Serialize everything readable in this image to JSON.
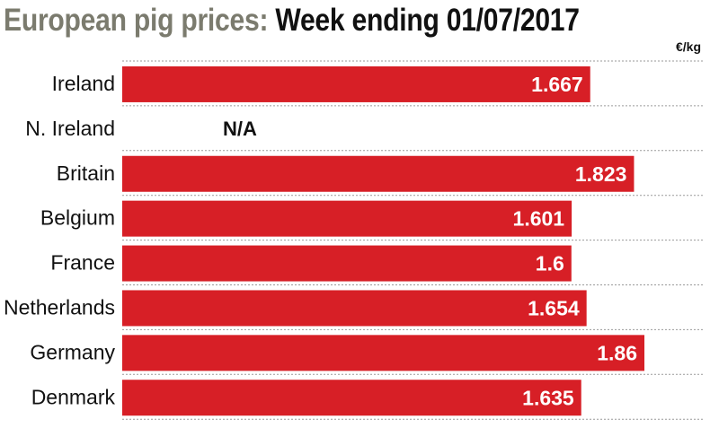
{
  "title": {
    "lead": "European pig prices:",
    "main": "Week ending 01/07/2017"
  },
  "unit": "€/kg",
  "colors": {
    "bar": "#d71f26",
    "bar_label": "#ffffff",
    "text": "#111111",
    "title_lead": "#7b7b6e",
    "grid": "#9a9a9a"
  },
  "chart_data": {
    "type": "bar",
    "orientation": "horizontal",
    "title": "European pig prices: Week ending 01/07/2017",
    "xlabel": "",
    "ylabel": "",
    "unit": "€/kg",
    "categories": [
      "Ireland",
      "N. Ireland",
      "Britain",
      "Belgium",
      "France",
      "Netherlands",
      "Germany",
      "Denmark"
    ],
    "values": [
      1.667,
      null,
      1.823,
      1.601,
      1.6,
      1.654,
      1.86,
      1.635
    ],
    "value_labels": [
      "1.667",
      "N/A",
      "1.823",
      "1.601",
      "1.6",
      "1.654",
      "1.86",
      "1.635"
    ],
    "xlim": [
      0,
      1.94
    ],
    "grid": true
  }
}
